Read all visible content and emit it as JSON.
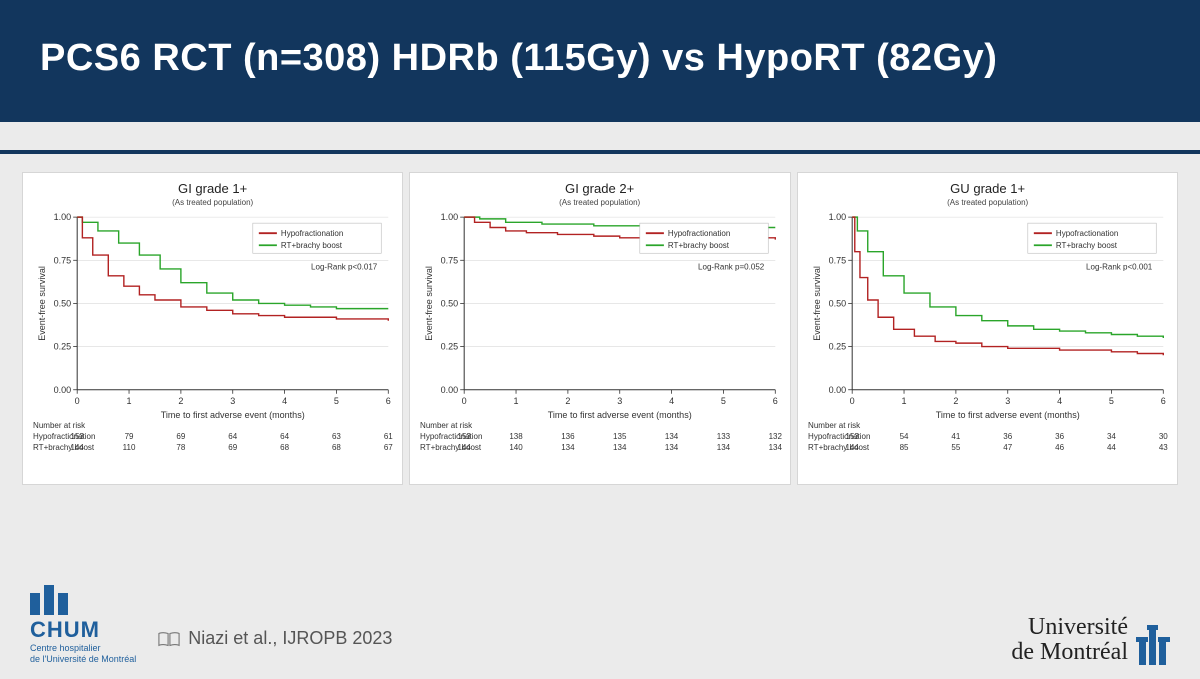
{
  "title": "PCS6 RCT (n=308) HDRb (115Gy) vs HypoRT (82Gy)",
  "citation": "Niazi et al., IJROPB 2023",
  "logos": {
    "chum_label": "CHUM",
    "chum_sub1": "Centre hospitalier",
    "chum_sub2": "de l'Université de Montréal",
    "udem_line1": "Université",
    "udem_line2": "de Montréal"
  },
  "chart_common": {
    "subtitle": "(As treated population)",
    "xlabel": "Time to first adverse event (months)",
    "ylabel": "Event-free survival",
    "xlim": [
      0,
      6
    ],
    "ylim": [
      0,
      1
    ],
    "xtick_step": 1,
    "ytick_step": 0.25,
    "ytick_labels": [
      "0.00",
      "0.25",
      "0.50",
      "0.75",
      "1.00"
    ],
    "background_color": "#ffffff",
    "grid_color": "#d9d9d9",
    "axis_color": "#333333",
    "line_width": 1.4,
    "legend": {
      "items": [
        {
          "label": "Hypofractionation",
          "color": "#b22222"
        },
        {
          "label": "RT+brachy boost",
          "color": "#2aa52a"
        }
      ],
      "position": "top-right"
    },
    "risk_header": "Number at risk",
    "risk_row_labels": [
      "Hypofractionation",
      "RT+brachy boost"
    ]
  },
  "charts": [
    {
      "id": "gi1",
      "title": "GI grade 1+",
      "logrank": "Log-Rank p<0.017",
      "series": {
        "hypo": {
          "color": "#b22222",
          "t": [
            0,
            0.1,
            0.3,
            0.6,
            0.9,
            1.2,
            1.5,
            2.0,
            2.5,
            3.0,
            3.5,
            4.0,
            4.5,
            5.0,
            5.5,
            6.0
          ],
          "y": [
            1.0,
            0.88,
            0.78,
            0.66,
            0.6,
            0.55,
            0.52,
            0.48,
            0.46,
            0.44,
            0.43,
            0.42,
            0.42,
            0.41,
            0.41,
            0.4
          ]
        },
        "brachy": {
          "color": "#2aa52a",
          "t": [
            0,
            0.1,
            0.4,
            0.8,
            1.2,
            1.6,
            2.0,
            2.5,
            3.0,
            3.5,
            4.0,
            4.5,
            5.0,
            5.5,
            6.0
          ],
          "y": [
            1.0,
            0.97,
            0.92,
            0.85,
            0.78,
            0.7,
            0.62,
            0.56,
            0.52,
            0.5,
            0.49,
            0.48,
            0.47,
            0.47,
            0.47
          ]
        }
      },
      "number_at_risk": {
        "t": [
          0,
          1,
          2,
          3,
          4,
          5,
          6
        ],
        "hypo": [
          153,
          79,
          69,
          64,
          64,
          63,
          61
        ],
        "brachy": [
          144,
          110,
          78,
          69,
          68,
          68,
          67
        ]
      }
    },
    {
      "id": "gi2",
      "title": "GI grade 2+",
      "logrank": "Log-Rank p=0.052",
      "series": {
        "hypo": {
          "color": "#b22222",
          "t": [
            0,
            0.2,
            0.5,
            0.8,
            1.2,
            1.8,
            2.5,
            3.0,
            4.0,
            5.0,
            6.0
          ],
          "y": [
            1.0,
            0.97,
            0.94,
            0.92,
            0.91,
            0.9,
            0.89,
            0.88,
            0.88,
            0.88,
            0.87
          ]
        },
        "brachy": {
          "color": "#2aa52a",
          "t": [
            0,
            0.3,
            0.8,
            1.5,
            2.5,
            3.5,
            4.5,
            6.0
          ],
          "y": [
            1.0,
            0.99,
            0.97,
            0.96,
            0.95,
            0.95,
            0.94,
            0.94
          ]
        }
      },
      "number_at_risk": {
        "t": [
          0,
          1,
          2,
          3,
          4,
          5,
          6
        ],
        "hypo": [
          153,
          138,
          136,
          135,
          134,
          133,
          132
        ],
        "brachy": [
          144,
          140,
          134,
          134,
          134,
          134,
          134
        ]
      }
    },
    {
      "id": "gu1",
      "title": "GU grade 1+",
      "logrank": "Log-Rank p<0.001",
      "series": {
        "hypo": {
          "color": "#b22222",
          "t": [
            0,
            0.05,
            0.15,
            0.3,
            0.5,
            0.8,
            1.2,
            1.6,
            2.0,
            2.5,
            3.0,
            3.5,
            4.0,
            4.5,
            5.0,
            5.5,
            6.0
          ],
          "y": [
            1.0,
            0.8,
            0.65,
            0.52,
            0.42,
            0.35,
            0.31,
            0.28,
            0.27,
            0.25,
            0.24,
            0.24,
            0.23,
            0.23,
            0.22,
            0.21,
            0.2
          ]
        },
        "brachy": {
          "color": "#2aa52a",
          "t": [
            0,
            0.1,
            0.3,
            0.6,
            1.0,
            1.5,
            2.0,
            2.5,
            3.0,
            3.5,
            4.0,
            4.5,
            5.0,
            5.5,
            6.0
          ],
          "y": [
            1.0,
            0.92,
            0.8,
            0.66,
            0.56,
            0.48,
            0.43,
            0.4,
            0.37,
            0.35,
            0.34,
            0.33,
            0.32,
            0.31,
            0.3
          ]
        }
      },
      "number_at_risk": {
        "t": [
          0,
          1,
          2,
          3,
          4,
          5,
          6
        ],
        "hypo": [
          153,
          54,
          41,
          36,
          36,
          34,
          30
        ],
        "brachy": [
          144,
          85,
          55,
          47,
          46,
          44,
          43
        ]
      }
    }
  ]
}
